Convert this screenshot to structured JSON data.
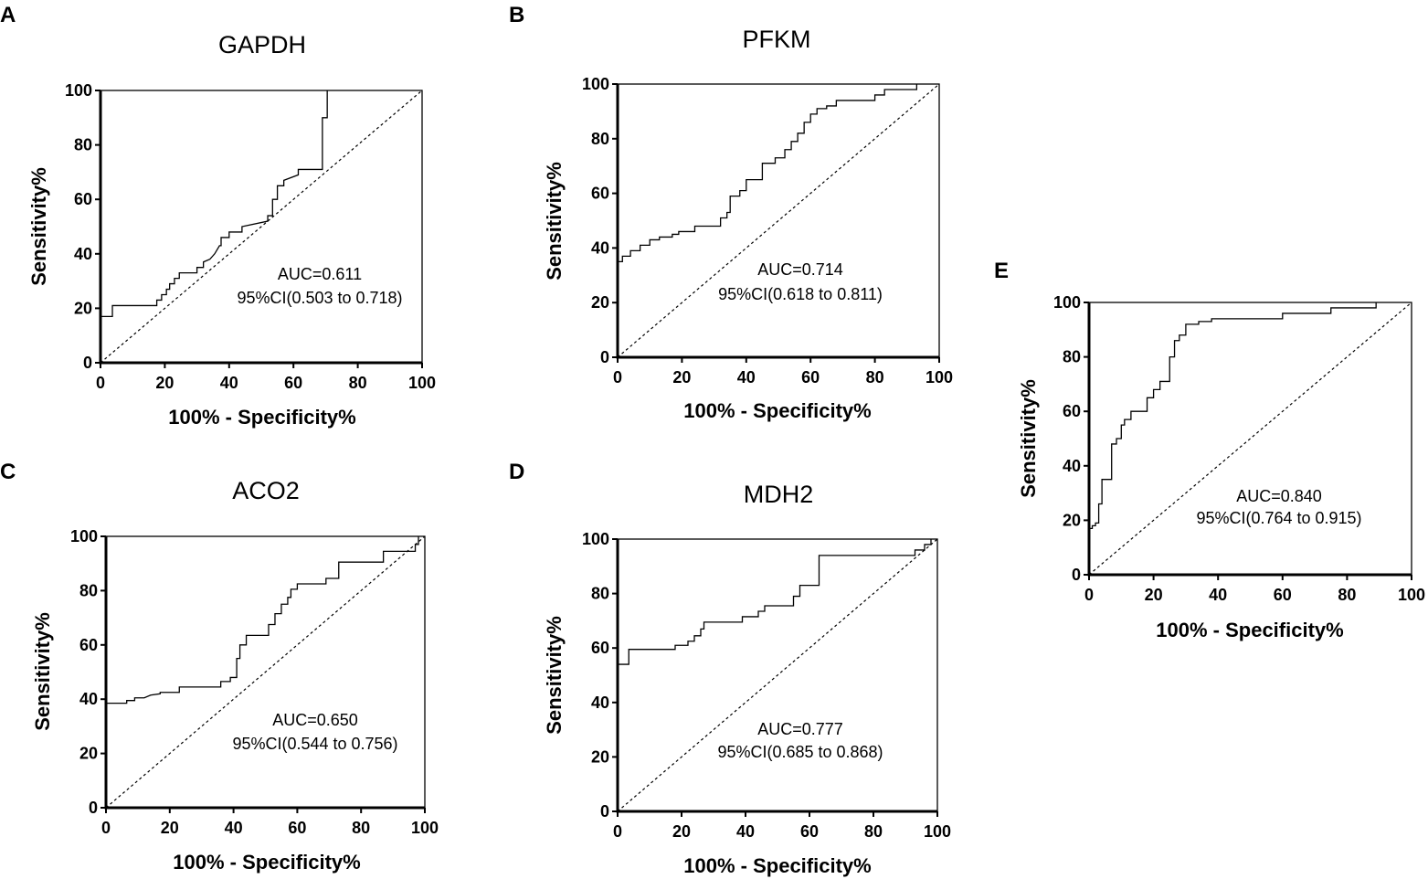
{
  "chart_data": [
    {
      "type": "line",
      "panel": "A",
      "title": "GAPDH",
      "xlabel": "100% - Specificity%",
      "ylabel": "Sensitivity%",
      "xlim": [
        0,
        100
      ],
      "ylim": [
        0,
        100
      ],
      "ticks": [
        "0",
        "20",
        "40",
        "60",
        "80",
        "100"
      ],
      "annotation": [
        "AUC=0.611",
        "95%CI(0.503 to 0.718)"
      ],
      "series": [
        {
          "name": "ROC",
          "x": [
            0,
            0,
            3.7,
            3.7,
            17.5,
            17.5,
            19,
            19,
            20.5,
            20.5,
            21.5,
            21.5,
            23,
            23,
            24.5,
            24.5,
            30,
            30,
            32,
            32,
            34,
            35.5,
            37,
            37.5,
            37.5,
            40,
            40,
            44,
            44,
            52,
            52,
            53.5,
            53.5,
            55,
            55,
            57,
            57,
            61.5,
            61.5,
            69,
            69,
            70.5,
            70.5
          ],
          "y": [
            0,
            17,
            17,
            21,
            21,
            23,
            23,
            25,
            25,
            27,
            27,
            29,
            29,
            31,
            31,
            33,
            33,
            35,
            35,
            37,
            38,
            40,
            43,
            43,
            46,
            46,
            48,
            48,
            50,
            52,
            54,
            54,
            60,
            60,
            65,
            65,
            67,
            69,
            71,
            71,
            90,
            90,
            100
          ]
        },
        {
          "name": "Reference",
          "x": [
            0,
            100
          ],
          "y": [
            0,
            100
          ]
        }
      ]
    },
    {
      "type": "line",
      "panel": "B",
      "title": "PFKM",
      "xlabel": "100% - Specificity%",
      "ylabel": "Sensitivity%",
      "xlim": [
        0,
        100
      ],
      "ylim": [
        0,
        100
      ],
      "ticks": [
        "0",
        "20",
        "40",
        "60",
        "80",
        "100"
      ],
      "annotation": [
        "AUC=0.714",
        "95%CI(0.618 to 0.811)"
      ],
      "series": [
        {
          "name": "ROC",
          "x": [
            0,
            0,
            1.5,
            1.5,
            4,
            4,
            7,
            7,
            10,
            10,
            13,
            13,
            17,
            17,
            19,
            19,
            24,
            24,
            32,
            32,
            34,
            34,
            35,
            35,
            38,
            38,
            40,
            40,
            45,
            45,
            49,
            49,
            52,
            52,
            54,
            54,
            56,
            56,
            58,
            58,
            60,
            60,
            62,
            62,
            65,
            65,
            68,
            68,
            80,
            80,
            83,
            83,
            93,
            93
          ],
          "y": [
            0,
            35,
            35,
            37,
            37,
            39,
            39,
            41,
            41,
            43,
            43,
            44,
            44,
            45,
            45,
            46,
            46,
            48,
            48,
            51,
            51,
            53,
            53,
            59,
            59,
            61,
            61,
            65,
            65,
            71,
            71,
            73,
            73,
            76,
            76,
            79,
            79,
            82,
            82,
            86,
            86,
            89,
            89,
            91,
            91,
            92,
            92,
            94,
            94,
            96,
            96,
            98,
            98,
            100
          ]
        },
        {
          "name": "Reference",
          "x": [
            0,
            100
          ],
          "y": [
            0,
            100
          ]
        }
      ]
    },
    {
      "type": "line",
      "panel": "C",
      "title": "ACO2",
      "xlabel": "100% - Specificity%",
      "ylabel": "Sensitivity%",
      "xlim": [
        0,
        100
      ],
      "ylim": [
        0,
        100
      ],
      "ticks": [
        "0",
        "20",
        "40",
        "60",
        "80",
        "100"
      ],
      "annotation": [
        "AUC=0.650",
        "95%CI(0.544 to 0.756)"
      ],
      "series": [
        {
          "name": "ROC",
          "x": [
            0,
            0,
            6.5,
            6.5,
            9,
            9,
            12,
            14,
            17,
            17,
            23,
            23,
            36,
            36,
            39,
            39,
            41,
            41,
            42,
            42,
            44,
            44,
            51,
            51,
            53,
            53,
            55,
            55,
            57,
            57,
            58,
            58,
            60,
            60,
            69,
            69,
            73,
            73,
            75,
            75,
            87,
            87,
            97,
            97,
            98,
            98
          ],
          "y": [
            0,
            38.5,
            38.5,
            39.5,
            39.5,
            40.5,
            40.5,
            41.5,
            42,
            42.5,
            42.5,
            44.5,
            44.5,
            46.5,
            46.5,
            48,
            48,
            55,
            55,
            60,
            60,
            63.5,
            63.5,
            67.5,
            67.5,
            71.5,
            71.5,
            75,
            75,
            77.5,
            77.5,
            80.5,
            80.5,
            82.5,
            82.5,
            84.5,
            84.5,
            90.5,
            90.5,
            90.5,
            90.5,
            94.5,
            94.5,
            97,
            97,
            100
          ]
        },
        {
          "name": "Reference",
          "x": [
            0,
            100
          ],
          "y": [
            0,
            100
          ]
        }
      ]
    },
    {
      "type": "line",
      "panel": "D",
      "title": "MDH2",
      "xlabel": "100% - Specificity%",
      "ylabel": "Sensitivity%",
      "xlim": [
        0,
        100
      ],
      "ylim": [
        0,
        100
      ],
      "ticks": [
        "0",
        "20",
        "40",
        "60",
        "80",
        "100"
      ],
      "annotation": [
        "AUC=0.777",
        "95%CI(0.685 to 0.868)"
      ],
      "series": [
        {
          "name": "ROC",
          "x": [
            0,
            0,
            3.5,
            3.5,
            18,
            18,
            22,
            22,
            24,
            24,
            26,
            26,
            27,
            27,
            39,
            39,
            44,
            44,
            46,
            46,
            55,
            55,
            57,
            57,
            63,
            63,
            91,
            91,
            93,
            93,
            96,
            96,
            98,
            98
          ],
          "y": [
            0,
            54,
            54,
            59.5,
            59.5,
            61,
            61,
            62.5,
            62.5,
            64.5,
            64.5,
            67,
            67,
            69.5,
            69.5,
            71.5,
            71.5,
            73.5,
            73.5,
            75.5,
            75.5,
            79,
            79,
            83,
            83,
            94,
            94,
            94,
            94,
            96,
            96,
            98,
            98,
            100
          ]
        },
        {
          "name": "Reference",
          "x": [
            0,
            100
          ],
          "y": [
            0,
            100
          ]
        }
      ]
    },
    {
      "type": "line",
      "panel": "E",
      "title": "",
      "xlabel": "100% - Specificity%",
      "ylabel": "Sensitivity%",
      "xlim": [
        0,
        100
      ],
      "ylim": [
        0,
        100
      ],
      "ticks": [
        "0",
        "20",
        "40",
        "60",
        "80",
        "100"
      ],
      "annotation": [
        "AUC=0.840",
        "95%CI(0.764 to 0.915)"
      ],
      "series": [
        {
          "name": "ROC",
          "x": [
            0,
            0,
            1,
            1,
            2,
            2,
            3,
            3,
            4,
            4,
            7,
            7,
            8.5,
            8.5,
            10,
            10,
            11,
            11,
            13,
            13,
            18,
            18,
            20,
            20,
            22,
            22,
            25,
            25,
            26.5,
            26.5,
            28,
            28,
            30,
            30,
            34,
            34,
            38,
            38,
            60,
            60,
            75,
            75,
            89,
            89
          ],
          "y": [
            0,
            17,
            17,
            18,
            18,
            19,
            19,
            26,
            26,
            35,
            35,
            48,
            48,
            50,
            50,
            55,
            55,
            57,
            57,
            60,
            60,
            65,
            65,
            68,
            68,
            71,
            71,
            80,
            80,
            86,
            86,
            88,
            88,
            92,
            92,
            93,
            93,
            94,
            94,
            96,
            96,
            98,
            98,
            100
          ]
        },
        {
          "name": "Reference",
          "x": [
            0,
            100
          ],
          "y": [
            0,
            100
          ]
        }
      ]
    }
  ]
}
